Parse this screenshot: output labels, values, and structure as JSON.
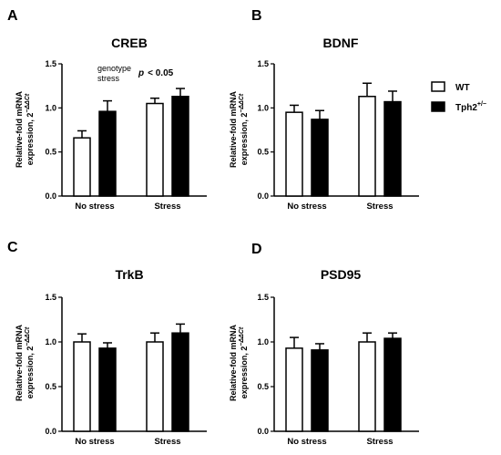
{
  "legend": {
    "items": [
      {
        "name": "WT",
        "fill": "#ffffff"
      },
      {
        "name": "Tph2",
        "sup": "+/−",
        "fill": "#000000"
      }
    ]
  },
  "chart_data": [
    {
      "panel": "A",
      "type": "bar",
      "title": "CREB",
      "ylabel_line1": "Relative-fold mRNA",
      "ylabel_line2": "expression, 2",
      "ylabel_sup": "−ΔΔCt",
      "ylim": [
        0,
        1.5
      ],
      "yticks": [
        "0.0",
        "0.5",
        "1.0",
        "1.5"
      ],
      "categories": [
        "No stress",
        "Stress"
      ],
      "series": [
        {
          "name": "WT",
          "values": [
            0.66,
            1.05
          ],
          "errors": [
            0.08,
            0.06
          ]
        },
        {
          "name": "Tph2+/−",
          "values": [
            0.96,
            1.13
          ],
          "errors": [
            0.12,
            0.09
          ]
        }
      ],
      "annotation": {
        "effects": [
          "genotype",
          "stress"
        ],
        "p_symbol": "p",
        "p_text": "< 0.05"
      }
    },
    {
      "panel": "B",
      "type": "bar",
      "title": "BDNF",
      "ylabel_line1": "Relative-fold mRNA",
      "ylabel_line2": "expression, 2",
      "ylabel_sup": "−ΔΔCt",
      "ylim": [
        0,
        1.5
      ],
      "yticks": [
        "0.0",
        "0.5",
        "1.0",
        "1.5"
      ],
      "categories": [
        "No stress",
        "Stress"
      ],
      "series": [
        {
          "name": "WT",
          "values": [
            0.95,
            1.13
          ],
          "errors": [
            0.08,
            0.15
          ]
        },
        {
          "name": "Tph2+/−",
          "values": [
            0.87,
            1.07
          ],
          "errors": [
            0.1,
            0.12
          ]
        }
      ]
    },
    {
      "panel": "C",
      "type": "bar",
      "title": "TrkB",
      "ylabel_line1": "Relative-fold mRNA",
      "ylabel_line2": "expression, 2",
      "ylabel_sup": "−ΔΔCt",
      "ylim": [
        0,
        1.5
      ],
      "yticks": [
        "0.0",
        "0.5",
        "1.0",
        "1.5"
      ],
      "categories": [
        "No stress",
        "Stress"
      ],
      "series": [
        {
          "name": "WT",
          "values": [
            1.0,
            1.0
          ],
          "errors": [
            0.09,
            0.1
          ]
        },
        {
          "name": "Tph2+/−",
          "values": [
            0.93,
            1.1
          ],
          "errors": [
            0.06,
            0.1
          ]
        }
      ]
    },
    {
      "panel": "D",
      "type": "bar",
      "title": "PSD95",
      "ylabel_line1": "Relative-fold mRNA",
      "ylabel_line2": "expression, 2",
      "ylabel_sup": "−ΔΔCt",
      "ylim": [
        0,
        1.5
      ],
      "yticks": [
        "0.0",
        "0.5",
        "1.0",
        "1.5"
      ],
      "categories": [
        "No stress",
        "Stress"
      ],
      "series": [
        {
          "name": "WT",
          "values": [
            0.93,
            1.0
          ],
          "errors": [
            0.12,
            0.1
          ]
        },
        {
          "name": "Tph2+/−",
          "values": [
            0.91,
            1.04
          ],
          "errors": [
            0.07,
            0.06
          ]
        }
      ]
    }
  ]
}
